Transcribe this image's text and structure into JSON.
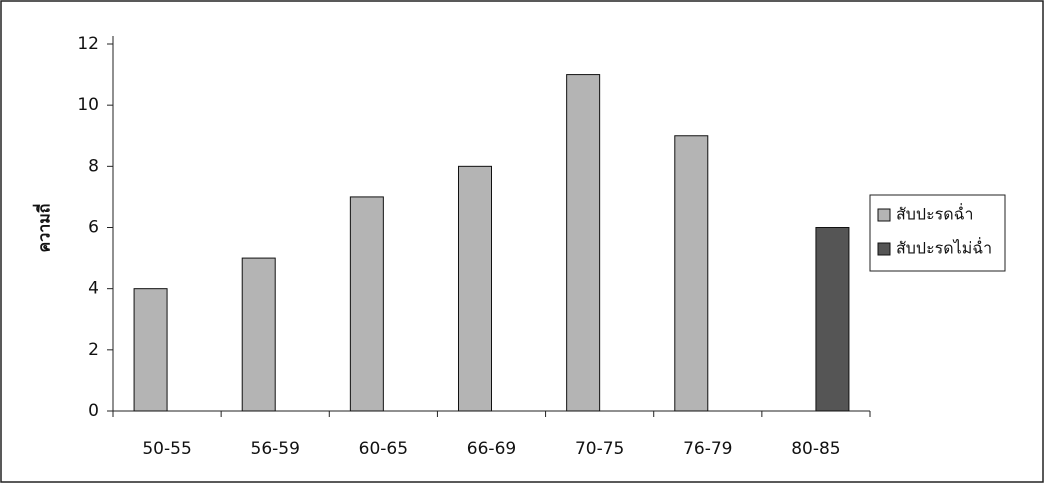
{
  "chart_data": {
    "type": "bar",
    "y_label": "ความถี่",
    "categories": [
      "50-55",
      "56-59",
      "60-65",
      "66-69",
      "70-75",
      "76-79",
      "80-85"
    ],
    "series": [
      {
        "name": "สับปะรดฉ่ำ",
        "color": "#b4b4b4",
        "values": [
          4,
          5,
          7,
          8,
          11,
          9,
          null
        ]
      },
      {
        "name": "สับปะรดไม่ฉ่ำ",
        "color": "#555555",
        "values": [
          null,
          null,
          null,
          null,
          null,
          null,
          6
        ]
      }
    ],
    "ylim": [
      0,
      12
    ],
    "yticks": [
      0,
      2,
      4,
      6,
      8,
      10,
      12
    ],
    "legend": "right"
  }
}
